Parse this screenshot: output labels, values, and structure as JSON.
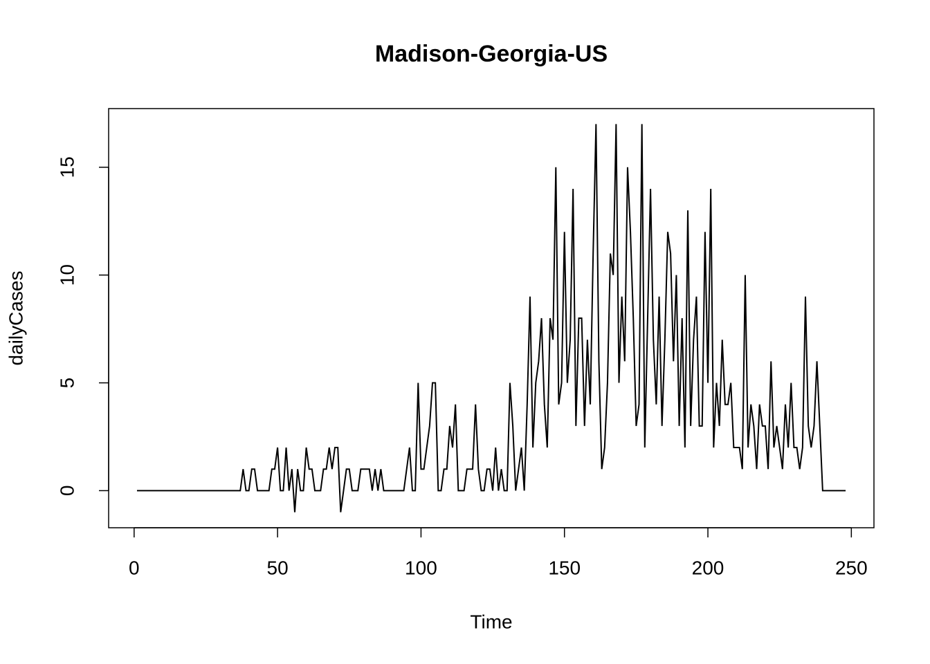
{
  "chart_data": {
    "type": "line",
    "title": "Madison-Georgia-US",
    "x_label": "Time",
    "y_label": "dailyCases",
    "color": "#000000",
    "x": [
      1,
      2,
      3,
      4,
      5,
      6,
      7,
      8,
      9,
      10,
      11,
      12,
      13,
      14,
      15,
      16,
      17,
      18,
      19,
      20,
      21,
      22,
      23,
      24,
      25,
      26,
      27,
      28,
      29,
      30,
      31,
      32,
      33,
      34,
      35,
      36,
      37,
      38,
      39,
      40,
      41,
      42,
      43,
      44,
      45,
      46,
      47,
      48,
      49,
      50,
      51,
      52,
      53,
      54,
      55,
      56,
      57,
      58,
      59,
      60,
      61,
      62,
      63,
      64,
      65,
      66,
      67,
      68,
      69,
      70,
      71,
      72,
      73,
      74,
      75,
      76,
      77,
      78,
      79,
      80,
      81,
      82,
      83,
      84,
      85,
      86,
      87,
      88,
      89,
      90,
      91,
      92,
      93,
      94,
      95,
      96,
      97,
      98,
      99,
      100,
      101,
      102,
      103,
      104,
      105,
      106,
      107,
      108,
      109,
      110,
      111,
      112,
      113,
      114,
      115,
      116,
      117,
      118,
      119,
      120,
      121,
      122,
      123,
      124,
      125,
      126,
      127,
      128,
      129,
      130,
      131,
      132,
      133,
      134,
      135,
      136,
      137,
      138,
      139,
      140,
      141,
      142,
      143,
      144,
      145,
      146,
      147,
      148,
      149,
      150,
      151,
      152,
      153,
      154,
      155,
      156,
      157,
      158,
      159,
      160,
      161,
      162,
      163,
      164,
      165,
      166,
      167,
      168,
      169,
      170,
      171,
      172,
      173,
      174,
      175,
      176,
      177,
      178,
      179,
      180,
      181,
      182,
      183,
      184,
      185,
      186,
      187,
      188,
      189,
      190,
      191,
      192,
      193,
      194,
      195,
      196,
      197,
      198,
      199,
      200,
      201,
      202,
      203,
      204,
      205,
      206,
      207,
      208,
      209,
      210,
      211,
      212,
      213,
      214,
      215,
      216,
      217,
      218,
      219,
      220,
      221,
      222,
      223,
      224,
      225,
      226,
      227,
      228,
      229,
      230,
      231,
      232,
      233,
      234,
      235,
      236,
      237,
      238,
      239,
      240,
      241,
      242,
      243,
      244,
      245,
      246,
      247,
      248
    ],
    "values": [
      0,
      0,
      0,
      0,
      0,
      0,
      0,
      0,
      0,
      0,
      0,
      0,
      0,
      0,
      0,
      0,
      0,
      0,
      0,
      0,
      0,
      0,
      0,
      0,
      0,
      0,
      0,
      0,
      0,
      0,
      0,
      0,
      0,
      0,
      0,
      0,
      0,
      1,
      0,
      0,
      1,
      1,
      0,
      0,
      0,
      0,
      0,
      1,
      1,
      2,
      0,
      0,
      2,
      0,
      1,
      -1,
      1,
      0,
      0,
      2,
      1,
      1,
      0,
      0,
      0,
      1,
      1,
      2,
      1,
      2,
      2,
      -1,
      0,
      1,
      1,
      0,
      0,
      0,
      1,
      1,
      1,
      1,
      0,
      1,
      0,
      1,
      0,
      0,
      0,
      0,
      0,
      0,
      0,
      0,
      1,
      2,
      0,
      0,
      5,
      1,
      1,
      2,
      3,
      5,
      5,
      0,
      0,
      1,
      1,
      3,
      2,
      4,
      0,
      0,
      0,
      1,
      1,
      1,
      4,
      1,
      0,
      0,
      1,
      1,
      0,
      2,
      0,
      1,
      0,
      0,
      5,
      3,
      0,
      1,
      2,
      0,
      4,
      9,
      2,
      5,
      6,
      8,
      4,
      2,
      8,
      7,
      15,
      4,
      5,
      12,
      5,
      7,
      14,
      3,
      8,
      8,
      3,
      7,
      4,
      11,
      17,
      6,
      1,
      2,
      5,
      11,
      10,
      17,
      5,
      9,
      6,
      15,
      12,
      8,
      3,
      4,
      17,
      2,
      8,
      14,
      7,
      4,
      9,
      3,
      7,
      12,
      11,
      6,
      10,
      3,
      8,
      2,
      13,
      3,
      7,
      9,
      3,
      3,
      12,
      5,
      14,
      2,
      5,
      3,
      7,
      4,
      4,
      5,
      2,
      2,
      2,
      1,
      10,
      2,
      4,
      3,
      1,
      4,
      3,
      3,
      1,
      6,
      2,
      3,
      2,
      1,
      4,
      2,
      5,
      2,
      2,
      1,
      2,
      9,
      3,
      2,
      3,
      6,
      3,
      0,
      0,
      0,
      0,
      0,
      0,
      0,
      0,
      0
    ],
    "xlim": [
      -8.88,
      257.88
    ],
    "ylim": [
      -1.72,
      17.72
    ],
    "xticks": [
      0,
      50,
      100,
      150,
      200,
      250
    ],
    "yticks": [
      0,
      5,
      10,
      15
    ]
  }
}
